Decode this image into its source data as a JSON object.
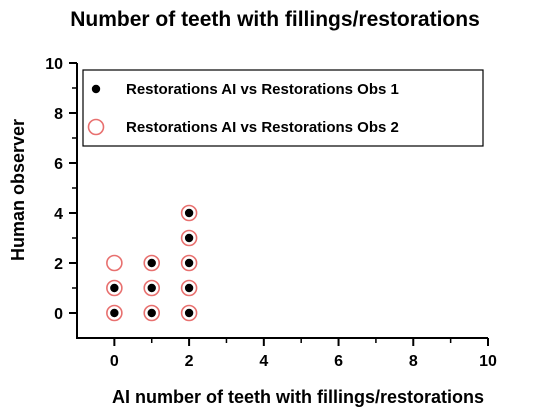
{
  "chart_data": {
    "type": "scatter",
    "title": "Number of teeth with fillings/restorations",
    "xlabel": "AI number of teeth with fillings/restorations",
    "ylabel": "Human observer",
    "xlim": [
      -1,
      10
    ],
    "ylim": [
      -1,
      10
    ],
    "x_ticks": [
      0,
      2,
      4,
      6,
      8,
      10
    ],
    "y_ticks": [
      0,
      2,
      4,
      6,
      8,
      10
    ],
    "x_minor_ticks": [
      1,
      3,
      5,
      7,
      9
    ],
    "y_minor_ticks": [
      1,
      3,
      5,
      7,
      9
    ],
    "grid": false,
    "legend_position": "top-left",
    "series": [
      {
        "name": "Restorations AI vs Restorations Obs 1",
        "marker": "filled-circle",
        "color": "#000000",
        "points": [
          {
            "x": 0,
            "y": 0
          },
          {
            "x": 0,
            "y": 1
          },
          {
            "x": 1,
            "y": 0
          },
          {
            "x": 1,
            "y": 1
          },
          {
            "x": 1,
            "y": 2
          },
          {
            "x": 2,
            "y": 0
          },
          {
            "x": 2,
            "y": 1
          },
          {
            "x": 2,
            "y": 2
          },
          {
            "x": 2,
            "y": 3
          },
          {
            "x": 2,
            "y": 4
          }
        ]
      },
      {
        "name": "Restorations AI vs Restorations Obs 2",
        "marker": "open-circle",
        "color": "#e8706f",
        "points": [
          {
            "x": 0,
            "y": 0
          },
          {
            "x": 0,
            "y": 1
          },
          {
            "x": 0,
            "y": 2
          },
          {
            "x": 1,
            "y": 0
          },
          {
            "x": 1,
            "y": 1
          },
          {
            "x": 1,
            "y": 2
          },
          {
            "x": 2,
            "y": 0
          },
          {
            "x": 2,
            "y": 1
          },
          {
            "x": 2,
            "y": 2
          },
          {
            "x": 2,
            "y": 3
          },
          {
            "x": 2,
            "y": 4
          }
        ]
      }
    ]
  }
}
